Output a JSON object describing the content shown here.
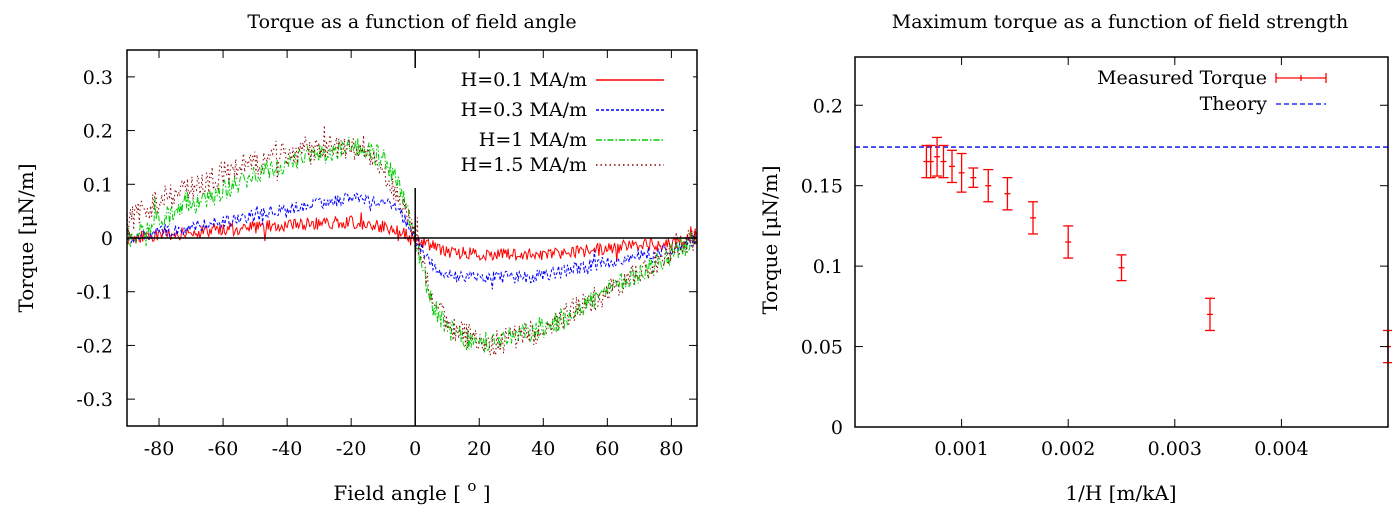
{
  "chart_data": [
    {
      "type": "line",
      "title": "Torque as a function of field angle",
      "xlabel": "Field angle [ ",
      "xlabel_sup": "o",
      "xlabel_end": " ]",
      "ylabel": "Torque [μN/m]",
      "xlim": [
        -90,
        88
      ],
      "ylim": [
        -0.35,
        0.35
      ],
      "xticks": [
        -80,
        -60,
        -40,
        -20,
        0,
        20,
        40,
        60,
        80
      ],
      "yticks": [
        0.3,
        0.2,
        0.1,
        0,
        -0.1,
        -0.2,
        -0.3
      ],
      "xtick_labels": [
        "-80",
        "-60",
        "-40",
        "-20",
        "0",
        "20",
        "40",
        "60",
        "80"
      ],
      "ytick_labels": [
        "0.3",
        "0.2",
        "0.1",
        "0",
        "-0.1",
        "-0.2",
        "-0.3"
      ],
      "grid": false,
      "legend_position": "top-right",
      "series": [
        {
          "name": "H=0.1 MA/m",
          "color": "#ff0000",
          "dash": "solid",
          "noise": 0.012,
          "x": [
            -90,
            -80,
            -60,
            -40,
            -20,
            -10,
            -5,
            0,
            5,
            10,
            20,
            40,
            60,
            80,
            88
          ],
          "y": [
            0.0,
            0.005,
            0.015,
            0.025,
            0.03,
            0.02,
            0.01,
            0.0,
            -0.015,
            -0.025,
            -0.03,
            -0.03,
            -0.02,
            -0.01,
            0.0
          ]
        },
        {
          "name": "H=0.3 MA/m",
          "color": "#0000ff",
          "dash": "short",
          "noise": 0.012,
          "x": [
            -90,
            -80,
            -60,
            -40,
            -20,
            -10,
            -5,
            0,
            5,
            10,
            20,
            40,
            60,
            80,
            88
          ],
          "y": [
            0.0,
            0.01,
            0.03,
            0.055,
            0.075,
            0.07,
            0.05,
            0.0,
            -0.05,
            -0.07,
            -0.075,
            -0.07,
            -0.045,
            -0.02,
            0.0
          ]
        },
        {
          "name": "H=1 MA/m",
          "color": "#00cc00",
          "dash": "dashdot",
          "noise": 0.02,
          "x": [
            -90,
            -80,
            -60,
            -40,
            -20,
            -10,
            -5,
            0,
            5,
            10,
            20,
            40,
            60,
            80,
            88
          ],
          "y": [
            0.0,
            0.03,
            0.09,
            0.14,
            0.17,
            0.15,
            0.1,
            0.0,
            -0.12,
            -0.17,
            -0.2,
            -0.17,
            -0.1,
            -0.03,
            0.0
          ]
        },
        {
          "name": "H=1.5 MA/m",
          "color": "#8b0000",
          "dash": "dot",
          "noise": 0.025,
          "x": [
            -90,
            -80,
            -60,
            -40,
            -30,
            -20,
            -10,
            -5,
            0,
            5,
            10,
            20,
            30,
            40,
            60,
            80,
            88
          ],
          "y": [
            0.03,
            0.07,
            0.12,
            0.16,
            0.17,
            0.17,
            0.13,
            0.08,
            0.0,
            -0.1,
            -0.16,
            -0.2,
            -0.19,
            -0.17,
            -0.1,
            -0.03,
            0.0
          ]
        }
      ]
    },
    {
      "type": "scatter",
      "title": "Maximum torque as a function of field strength",
      "xlabel": "1/H [m/kA]",
      "ylabel": "Torque [μN/m]",
      "xlim": [
        0,
        0.005
      ],
      "ylim": [
        0,
        0.23
      ],
      "xticks": [
        0.001,
        0.002,
        0.003,
        0.004
      ],
      "yticks": [
        0,
        0.05,
        0.1,
        0.15,
        0.2
      ],
      "xtick_labels": [
        "0.001",
        "0.002",
        "0.003",
        "0.004"
      ],
      "ytick_labels": [
        "0",
        "0.05",
        "0.1",
        "0.15",
        "0.2"
      ],
      "grid": false,
      "legend_position": "top-right",
      "series": [
        {
          "name": "Measured Torque",
          "color": "#ff0000",
          "style": "errorbars",
          "x": [
            0.00067,
            0.00071,
            0.00077,
            0.00083,
            0.00091,
            0.001,
            0.00111,
            0.00125,
            0.00143,
            0.00167,
            0.002,
            0.0025,
            0.00333,
            0.005
          ],
          "y": [
            0.165,
            0.165,
            0.168,
            0.165,
            0.162,
            0.158,
            0.155,
            0.15,
            0.145,
            0.13,
            0.115,
            0.099,
            0.07,
            0.05
          ],
          "err": [
            0.01,
            0.01,
            0.012,
            0.01,
            0.01,
            0.012,
            0.006,
            0.01,
            0.01,
            0.01,
            0.01,
            0.008,
            0.01,
            0.01
          ]
        },
        {
          "name": "Theory",
          "color": "#0000ff",
          "style": "dashed-line",
          "x": [
            0,
            0.005
          ],
          "y": [
            0.174,
            0.174
          ]
        }
      ]
    }
  ]
}
